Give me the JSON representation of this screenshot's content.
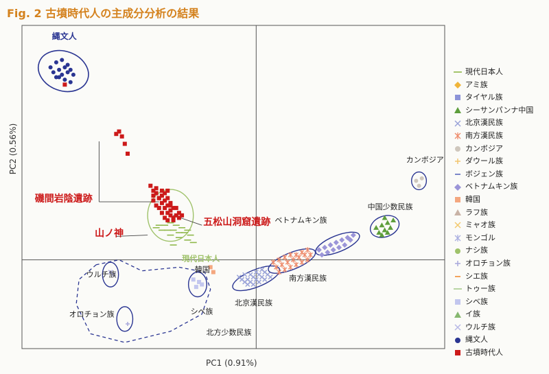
{
  "title": "Fig. 2 古墳時代人の主成分分析の結果",
  "chart_data": {
    "type": "scatter",
    "title": "Fig. 2 古墳時代人の主成分分析の結果",
    "xlabel": "PC1 (0.91%)",
    "ylabel": "PC2 (0.56%)",
    "grid": false,
    "legend_position": "right",
    "legend": [
      {
        "name": "現代日本人",
        "marker": "line",
        "color": "#8fb84a"
      },
      {
        "name": "アミ族",
        "marker": "diamond",
        "color": "#f0b53a"
      },
      {
        "name": "タイヤル族",
        "marker": "square",
        "color": "#8d94d8"
      },
      {
        "name": "シーサンパンナ中国",
        "marker": "triangle",
        "color": "#5e9e3c"
      },
      {
        "name": "北京漢民族",
        "marker": "x",
        "color": "#9aa3d8"
      },
      {
        "name": "南方漢民族",
        "marker": "star",
        "color": "#ee8a6a"
      },
      {
        "name": "カンボジア",
        "marker": "circle",
        "color": "#cfc7bd"
      },
      {
        "name": "ダウール族",
        "marker": "plus",
        "color": "#f1c56e"
      },
      {
        "name": "ボジェン族",
        "marker": "dash",
        "color": "#7b86c9"
      },
      {
        "name": "ベトナムキン族",
        "marker": "diamond",
        "color": "#9b95d8"
      },
      {
        "name": "韓国",
        "marker": "square",
        "color": "#f4a77f"
      },
      {
        "name": "ラフ族",
        "marker": "triangle",
        "color": "#c9b3a6"
      },
      {
        "name": "ミャオ族",
        "marker": "x",
        "color": "#f3c96c"
      },
      {
        "name": "モンゴル",
        "marker": "star",
        "color": "#a9aee0"
      },
      {
        "name": "ナシ族",
        "marker": "circle",
        "color": "#9fc26a"
      },
      {
        "name": "オロチョン族",
        "marker": "plus",
        "color": "#a8a8da"
      },
      {
        "name": "シエ族",
        "marker": "dash",
        "color": "#f2a45d"
      },
      {
        "name": "トゥー族",
        "marker": "line",
        "color": "#a7cc8c"
      },
      {
        "name": "シベ族",
        "marker": "square",
        "color": "#c2c6ee"
      },
      {
        "name": "イ族",
        "marker": "triangle",
        "color": "#86b870"
      },
      {
        "name": "ウルチ族",
        "marker": "x",
        "color": "#b7b8e6"
      },
      {
        "name": "縄文人",
        "marker": "circle",
        "color": "#2a3592"
      },
      {
        "name": "古墳時代人",
        "marker": "square",
        "color": "#cc1a1a"
      }
    ],
    "series": [
      {
        "name": "縄文人",
        "color": "#2a3592",
        "marker": "circle",
        "x": [
          -0.7,
          -0.68,
          -0.66,
          -0.72,
          -0.69,
          -0.67,
          -0.65,
          -0.71,
          -0.68,
          -0.66,
          -0.64,
          -0.7,
          -0.67,
          -0.69,
          -0.65
        ],
        "y": [
          0.8,
          0.81,
          0.79,
          0.78,
          0.77,
          0.78,
          0.77,
          0.76,
          0.75,
          0.76,
          0.75,
          0.74,
          0.73,
          0.74,
          0.72
        ]
      },
      {
        "name": "古墳時代人",
        "color": "#cc1a1a",
        "marker": "square",
        "x": [
          -0.67,
          -0.49,
          -0.48,
          -0.47,
          -0.46,
          -0.45,
          -0.37,
          -0.36,
          -0.35,
          -0.36,
          -0.35,
          -0.34,
          -0.33,
          -0.36,
          -0.34,
          -0.33,
          -0.32,
          -0.31,
          -0.35,
          -0.33,
          -0.32,
          -0.31,
          -0.3,
          -0.34,
          -0.32,
          -0.31,
          -0.3,
          -0.29,
          -0.33,
          -0.31,
          -0.3,
          -0.28,
          -0.27,
          -0.32,
          -0.3,
          -0.29,
          -0.28,
          -0.26,
          -0.31,
          -0.29,
          -0.27
        ],
        "y": [
          0.71,
          0.51,
          0.52,
          0.5,
          0.47,
          0.43,
          0.3,
          0.28,
          0.29,
          0.26,
          0.27,
          0.25,
          0.28,
          0.24,
          0.25,
          0.26,
          0.27,
          0.28,
          0.22,
          0.23,
          0.24,
          0.25,
          0.22,
          0.21,
          0.21,
          0.22,
          0.23,
          0.21,
          0.19,
          0.19,
          0.2,
          0.21,
          0.19,
          0.17,
          0.18,
          0.17,
          0.18,
          0.18,
          0.16,
          0.16,
          0.17
        ]
      },
      {
        "name": "現代日本人",
        "color": "#8fb84a",
        "marker": "line",
        "x": [
          -0.34,
          -0.32,
          -0.3,
          -0.28,
          -0.26,
          -0.24,
          -0.33,
          -0.31,
          -0.29,
          -0.27,
          -0.25,
          -0.23,
          -0.35,
          -0.3,
          -0.27,
          -0.24,
          -0.22,
          -0.29
        ],
        "y": [
          0.14,
          0.14,
          0.15,
          0.14,
          0.13,
          0.12,
          0.12,
          0.12,
          0.12,
          0.11,
          0.11,
          0.1,
          0.13,
          0.1,
          0.09,
          0.08,
          0.07,
          0.06
        ]
      },
      {
        "name": "韓国",
        "color": "#f4a77f",
        "marker": "square",
        "x": [
          -0.16,
          -0.15
        ],
        "y": [
          -0.03,
          -0.05
        ]
      },
      {
        "name": "シベ族",
        "color": "#c2c6ee",
        "marker": "square",
        "x": [
          -0.22,
          -0.2,
          -0.21,
          -0.19
        ],
        "y": [
          -0.08,
          -0.09,
          -0.11,
          -0.1
        ]
      },
      {
        "name": "北京漢民族",
        "color": "#9aa3d8",
        "marker": "x",
        "x": [
          -0.06,
          -0.04,
          -0.02,
          0.0,
          0.02,
          -0.05,
          -0.03,
          -0.01,
          0.01,
          0.03,
          -0.04,
          -0.02,
          0.0,
          0.02,
          0.04,
          -0.03,
          -0.01,
          0.01,
          0.03,
          0.05
        ],
        "y": [
          -0.07,
          -0.06,
          -0.06,
          -0.05,
          -0.04,
          -0.08,
          -0.08,
          -0.07,
          -0.06,
          -0.05,
          -0.09,
          -0.09,
          -0.08,
          -0.07,
          -0.06,
          -0.1,
          -0.1,
          -0.09,
          -0.08,
          -0.07
        ]
      },
      {
        "name": "南方漢民族",
        "color": "#ee8a6a",
        "marker": "star",
        "x": [
          0.06,
          0.08,
          0.1,
          0.12,
          0.14,
          0.16,
          0.18,
          0.07,
          0.09,
          0.11,
          0.13,
          0.15,
          0.17,
          0.19,
          0.08,
          0.1,
          0.12,
          0.14,
          0.16,
          0.18
        ],
        "y": [
          -0.01,
          0.0,
          0.01,
          0.02,
          0.02,
          0.03,
          0.04,
          -0.03,
          -0.02,
          -0.01,
          0.0,
          0.01,
          0.02,
          0.02,
          -0.05,
          -0.04,
          -0.03,
          -0.02,
          -0.01,
          0.0
        ]
      },
      {
        "name": "ベトナムキン族",
        "color": "#9b95d8",
        "marker": "diamond",
        "x": [
          0.22,
          0.24,
          0.26,
          0.28,
          0.3,
          0.32,
          0.34,
          0.23,
          0.25,
          0.27,
          0.29,
          0.31,
          0.33
        ],
        "y": [
          0.04,
          0.05,
          0.06,
          0.07,
          0.08,
          0.09,
          0.1,
          0.02,
          0.03,
          0.04,
          0.05,
          0.06,
          0.08
        ]
      },
      {
        "name": "シーサンパンナ中国",
        "color": "#5e9e3c",
        "marker": "triangle",
        "x": [
          0.42,
          0.44,
          0.46,
          0.48,
          0.43,
          0.45,
          0.47,
          0.44,
          0.46,
          0.45
        ],
        "y": [
          0.13,
          0.14,
          0.15,
          0.16,
          0.11,
          0.12,
          0.13,
          0.1,
          0.11,
          0.17
        ]
      },
      {
        "name": "カンボジア",
        "color": "#cfc7bd",
        "marker": "circle",
        "x": [
          0.56,
          0.58,
          0.57
        ],
        "y": [
          0.32,
          0.33,
          0.3
        ]
      },
      {
        "name": "ウルチ族",
        "color": "#b7b8e6",
        "marker": "x",
        "x": [
          -0.51,
          -0.5
        ],
        "y": [
          -0.05,
          -0.06
        ]
      },
      {
        "name": "オロチョン族",
        "color": "#a8a8da",
        "marker": "plus",
        "x": [
          -0.45
        ],
        "y": [
          -0.26
        ]
      }
    ],
    "xlim": [
      -0.82,
      0.66
    ],
    "ylim": [
      -0.36,
      0.95
    ],
    "ellipses": [
      {
        "label": "縄文人",
        "cx": -0.675,
        "cy": 0.765,
        "rx": 0.09,
        "ry": 0.08,
        "rot": 20,
        "color": "#2a3592",
        "stroke": 1.6
      },
      {
        "label": "現代日本人",
        "cx": -0.3,
        "cy": 0.18,
        "rx": 0.08,
        "ry": 0.105,
        "rot": 0,
        "color": "#9fc26a",
        "stroke": 1.4
      },
      {
        "label": "ウルチ族",
        "cx": -0.51,
        "cy": -0.06,
        "rx": 0.028,
        "ry": 0.05,
        "rot": 0,
        "color": "#2a3592",
        "stroke": 1.4
      },
      {
        "label": "オロチョン族",
        "cx": -0.46,
        "cy": -0.24,
        "rx": 0.028,
        "ry": 0.05,
        "rot": 0,
        "color": "#2a3592",
        "stroke": 1.4
      },
      {
        "label": "シベ族",
        "cx": -0.205,
        "cy": -0.1,
        "rx": 0.032,
        "ry": 0.05,
        "rot": 0,
        "color": "#2a3592",
        "stroke": 1.4
      },
      {
        "label": "北京漢民族",
        "cx": 0.0,
        "cy": -0.075,
        "rx": 0.088,
        "ry": 0.035,
        "rot": -22,
        "color": "#2a3592",
        "stroke": 1.4
      },
      {
        "label": "南方漢民族",
        "cx": 0.125,
        "cy": -0.005,
        "rx": 0.088,
        "ry": 0.034,
        "rot": -22,
        "color": "#2a3592",
        "stroke": 1.4
      },
      {
        "label": "ベトナムキン族",
        "cx": 0.285,
        "cy": 0.065,
        "rx": 0.082,
        "ry": 0.033,
        "rot": -22,
        "color": "#2a3592",
        "stroke": 1.4
      },
      {
        "label": "中国少数民族",
        "cx": 0.45,
        "cy": 0.135,
        "rx": 0.052,
        "ry": 0.042,
        "rot": -20,
        "color": "#2a3592",
        "stroke": 1.4
      },
      {
        "label": "カンボジア",
        "cx": 0.57,
        "cy": 0.32,
        "rx": 0.026,
        "ry": 0.036,
        "rot": 0,
        "color": "#2a3592",
        "stroke": 1.4
      }
    ],
    "dashed_region_label": "北方少数民族",
    "annotations": [
      {
        "text": "縄文人",
        "x": -0.715,
        "y": 0.895,
        "color": "#2a3592",
        "size": 12,
        "bold": true,
        "anchor": "start"
      },
      {
        "text": "磯間岩陰遺跡",
        "x": -0.775,
        "y": 0.235,
        "color": "#cc1a1a",
        "size": 14,
        "bold": true,
        "anchor": "start"
      },
      {
        "text": "五松山洞窟遺跡",
        "x": -0.185,
        "y": 0.14,
        "color": "#cc1a1a",
        "size": 14,
        "bold": true,
        "anchor": "start"
      },
      {
        "text": "山ノ神",
        "x": -0.565,
        "y": 0.095,
        "color": "#cc1a1a",
        "size": 14,
        "bold": true,
        "anchor": "start"
      },
      {
        "text": "現代日本人",
        "x": -0.26,
        "y": -0.005,
        "color": "#9fc26a",
        "size": 11,
        "bold": true,
        "anchor": "start"
      },
      {
        "text": "韓国",
        "x": -0.215,
        "y": -0.05,
        "color": "#222",
        "size": 11,
        "bold": false,
        "anchor": "start"
      },
      {
        "text": "ウルチ族",
        "x": -0.595,
        "y": -0.07,
        "color": "#222",
        "size": 11,
        "bold": false,
        "anchor": "start"
      },
      {
        "text": "オロチョン族",
        "x": -0.655,
        "y": -0.23,
        "color": "#222",
        "size": 11,
        "bold": false,
        "anchor": "start"
      },
      {
        "text": "シベ族",
        "x": -0.23,
        "y": -0.22,
        "color": "#222",
        "size": 11,
        "bold": false,
        "anchor": "start"
      },
      {
        "text": "北方少数民族",
        "x": -0.175,
        "y": -0.305,
        "color": "#222",
        "size": 11,
        "bold": false,
        "anchor": "start"
      },
      {
        "text": "北京漢民族",
        "x": -0.075,
        "y": -0.185,
        "color": "#222",
        "size": 11,
        "bold": false,
        "anchor": "start"
      },
      {
        "text": "南方漢民族",
        "x": 0.115,
        "y": -0.085,
        "color": "#222",
        "size": 11,
        "bold": false,
        "anchor": "start"
      },
      {
        "text": "ベトナムキン族",
        "x": 0.065,
        "y": 0.15,
        "color": "#222",
        "size": 11,
        "bold": false,
        "anchor": "start"
      },
      {
        "text": "中国少数民族",
        "x": 0.39,
        "y": 0.205,
        "color": "#222",
        "size": 11,
        "bold": false,
        "anchor": "start"
      },
      {
        "text": "カンボジア",
        "x": 0.525,
        "y": 0.395,
        "color": "#222",
        "size": 11,
        "bold": false,
        "anchor": "start"
      }
    ]
  }
}
